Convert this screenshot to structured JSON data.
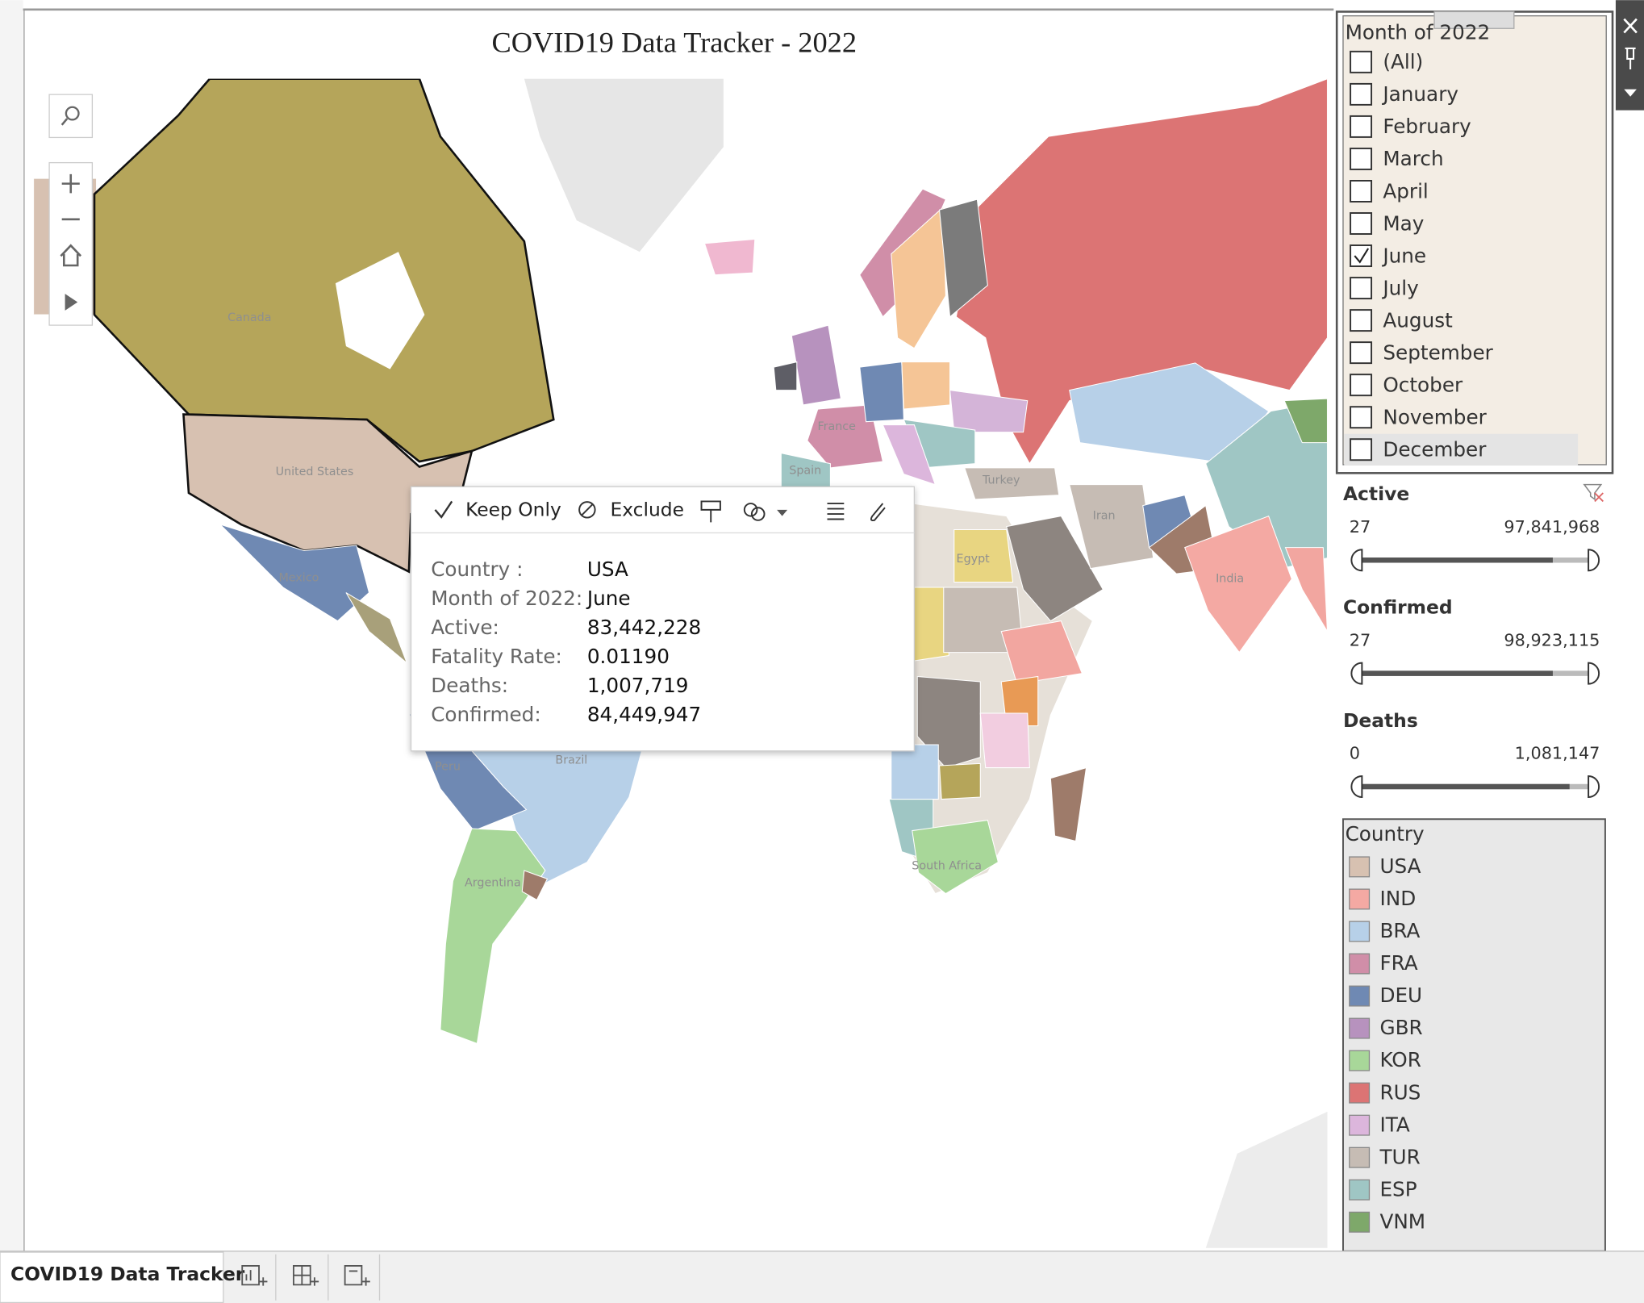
{
  "title": "COVID19 Data Tracker - 2022",
  "map": {
    "labels": [
      "Canada",
      "United States",
      "Mexico",
      "France",
      "Spain",
      "Turkey",
      "Iran",
      "Egypt",
      "India",
      "Brazil",
      "Peru",
      "Argentina",
      "South Africa"
    ]
  },
  "tooltip": {
    "actions": [
      "Keep Only",
      "Exclude"
    ],
    "fields": [
      {
        "label": "Country :",
        "value": "USA"
      },
      {
        "label": "Month of 2022:",
        "value": "June"
      },
      {
        "label": "Active:",
        "value": "83,442,228"
      },
      {
        "label": "Fatality Rate:",
        "value": "0.01190"
      },
      {
        "label": "Deaths:",
        "value": "1,007,719"
      },
      {
        "label": "Confirmed:",
        "value": "84,449,947"
      }
    ]
  },
  "month_filter": {
    "title": "Month of 2022",
    "items": [
      {
        "label": "(All)",
        "checked": false
      },
      {
        "label": "January",
        "checked": false
      },
      {
        "label": "February",
        "checked": false
      },
      {
        "label": "March",
        "checked": false
      },
      {
        "label": "April",
        "checked": false
      },
      {
        "label": "May",
        "checked": false
      },
      {
        "label": "June",
        "checked": true
      },
      {
        "label": "July",
        "checked": false
      },
      {
        "label": "August",
        "checked": false
      },
      {
        "label": "September",
        "checked": false
      },
      {
        "label": "October",
        "checked": false
      },
      {
        "label": "November",
        "checked": false
      },
      {
        "label": "December",
        "checked": false
      }
    ]
  },
  "range_filters": [
    {
      "title": "Active",
      "min": "27",
      "max": "97,841,968"
    },
    {
      "title": "Confirmed",
      "min": "27",
      "max": "98,923,115"
    },
    {
      "title": "Deaths",
      "min": "0",
      "max": "1,081,147"
    }
  ],
  "legend": {
    "title": "Country",
    "items": [
      {
        "label": "USA",
        "color": "#d7c1b1"
      },
      {
        "label": "IND",
        "color": "#f4a9a3"
      },
      {
        "label": "BRA",
        "color": "#b7d0e8"
      },
      {
        "label": "FRA",
        "color": "#d08ea8"
      },
      {
        "label": "DEU",
        "color": "#6f89b3"
      },
      {
        "label": "GBR",
        "color": "#b792be"
      },
      {
        "label": "KOR",
        "color": "#a8d799"
      },
      {
        "label": "RUS",
        "color": "#dc7474"
      },
      {
        "label": "ITA",
        "color": "#dcb6dc"
      },
      {
        "label": "TUR",
        "color": "#c6bcb4"
      },
      {
        "label": "ESP",
        "color": "#9fc6c4"
      },
      {
        "label": "VNM",
        "color": "#7ea86a"
      }
    ]
  },
  "tabs": [
    "COVID19 Data Tracker"
  ]
}
